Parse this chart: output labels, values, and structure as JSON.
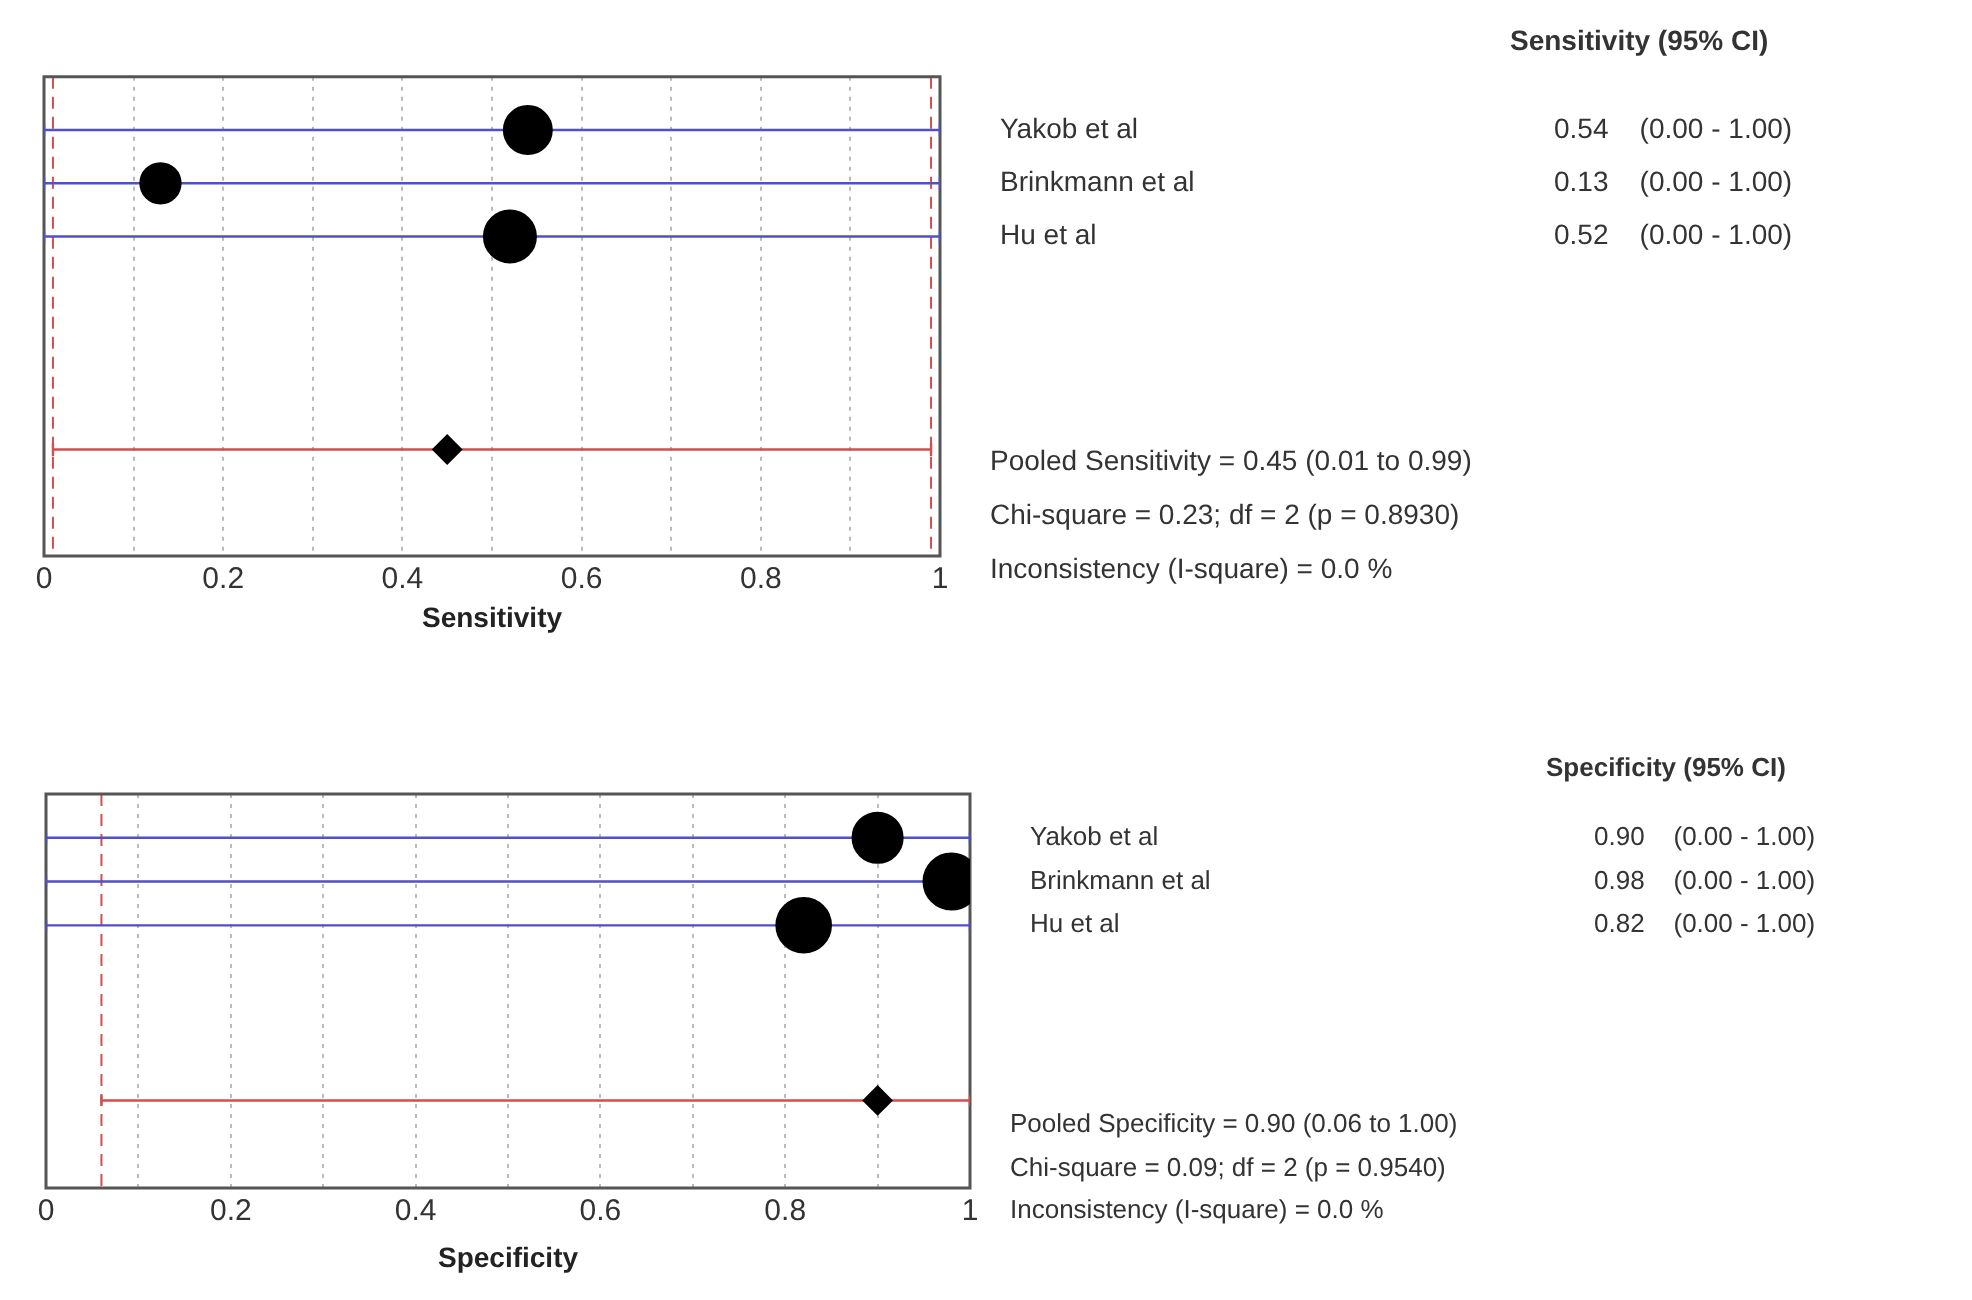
{
  "chart_data": [
    {
      "type": "scatter",
      "orientation": "horizontal",
      "xlabel": "Sensitivity",
      "categories": [
        "Yakob et al",
        "Brinkmann et al",
        "Hu et al",
        null,
        null,
        null,
        null
      ],
      "series": [
        {
          "type": "bubble",
          "color": "#5050c8",
          "colors": [
            "#000000",
            "#000000",
            "#000000",
            null,
            null,
            null,
            null
          ],
          "marker": "circle",
          "values": [
            0.54,
            0.13,
            0.52,
            null,
            null,
            null,
            null
          ],
          "sizes": [
            0.85,
            0.6,
            1,
            null,
            null,
            null,
            null
          ],
          "errors": [
            [
              0,
              1
            ],
            [
              0,
              1
            ],
            [
              0,
              1
            ],
            null,
            null,
            null,
            null
          ],
          "value_labels": [
            "0.54    (0.00 - 1.00)",
            "0.13    (0.00 - 1.00)",
            "0.52    (0.00 - 1.00)",
            null,
            null,
            null,
            null
          ]
        },
        {
          "type": "scatter",
          "color": "#d05050",
          "colors": [
            null,
            null,
            null,
            null,
            null,
            null,
            "#000000"
          ],
          "marker": "diamond",
          "values": [
            null,
            null,
            null,
            null,
            null,
            null,
            0.45
          ],
          "errors": [
            null,
            null,
            null,
            null,
            null,
            null,
            [
              0.01,
              0.99
            ]
          ]
        }
      ],
      "xlim": [
        0,
        1
      ],
      "xticks": [
        0,
        {
          "value": 0.1,
          "label": null
        },
        0.2,
        {
          "value": 0.3,
          "label": null
        },
        0.4,
        {
          "value": 0.5,
          "label": null
        },
        0.6,
        {
          "value": 0.7,
          "label": null
        },
        0.8,
        {
          "value": 0.9,
          "label": null
        },
        1
      ],
      "ref_lines": [
        {
          "axis": "x",
          "value": 0.01,
          "color": "#d05050",
          "line_style": "dashed"
        },
        {
          "axis": "x",
          "value": 0.99,
          "color": "#d05050",
          "line_style": "dashed"
        }
      ],
      "grid": "x",
      "legend": false,
      "annotations": [
        "Sensitivity (95% CI)",
        "Pooled Sensitivity = 0.45 (0.01 to 0.99)",
        "Chi-square = 0.23; df =  2 (p = 0.8930)",
        "Inconsistency (I-square) = 0.0 %"
      ]
    },
    {
      "type": "scatter",
      "orientation": "horizontal",
      "xlabel": "Specificity",
      "categories": [
        "Yakob et al",
        "Brinkmann et al",
        "Hu et al",
        null,
        null,
        null,
        null
      ],
      "series": [
        {
          "type": "bubble",
          "color": "#5050c8",
          "colors": [
            "#000000",
            "#000000",
            "#000000",
            null,
            null,
            null,
            null
          ],
          "marker": "circle",
          "values": [
            0.9,
            0.98,
            0.82,
            null,
            null,
            null,
            null
          ],
          "sizes": [
            0.8,
            1,
            0.95,
            null,
            null,
            null,
            null
          ],
          "errors": [
            [
              0,
              1
            ],
            [
              0,
              1
            ],
            [
              0,
              1
            ],
            null,
            null,
            null,
            null
          ],
          "value_labels": [
            "0.90    (0.00 - 1.00)",
            "0.98    (0.00 - 1.00)",
            "0.82    (0.00 - 1.00)",
            null,
            null,
            null,
            null
          ]
        },
        {
          "type": "scatter",
          "color": "#d05050",
          "colors": [
            null,
            null,
            null,
            null,
            null,
            null,
            "#000000"
          ],
          "marker": "diamond",
          "values": [
            null,
            null,
            null,
            null,
            null,
            null,
            0.9
          ],
          "errors": [
            null,
            null,
            null,
            null,
            null,
            null,
            [
              0.06,
              1.0
            ]
          ]
        }
      ],
      "xlim": [
        0,
        1
      ],
      "xticks": [
        0,
        {
          "value": 0.1,
          "label": null
        },
        0.2,
        {
          "value": 0.3,
          "label": null
        },
        0.4,
        {
          "value": 0.5,
          "label": null
        },
        0.6,
        {
          "value": 0.7,
          "label": null
        },
        0.8,
        {
          "value": 0.9,
          "label": null
        },
        1
      ],
      "ref_lines": [
        {
          "axis": "x",
          "value": 0.06,
          "color": "#d05050",
          "line_style": "dashed"
        }
      ],
      "grid": "x",
      "legend": false,
      "annotations": [
        "Specificity (95% CI)",
        "Pooled Specificity = 0.90 (0.06 to 1.00)",
        "Chi-square = 0.09; df =  2 (p = 0.9540)",
        "Inconsistency (I-square) = 0.0 %"
      ]
    }
  ]
}
